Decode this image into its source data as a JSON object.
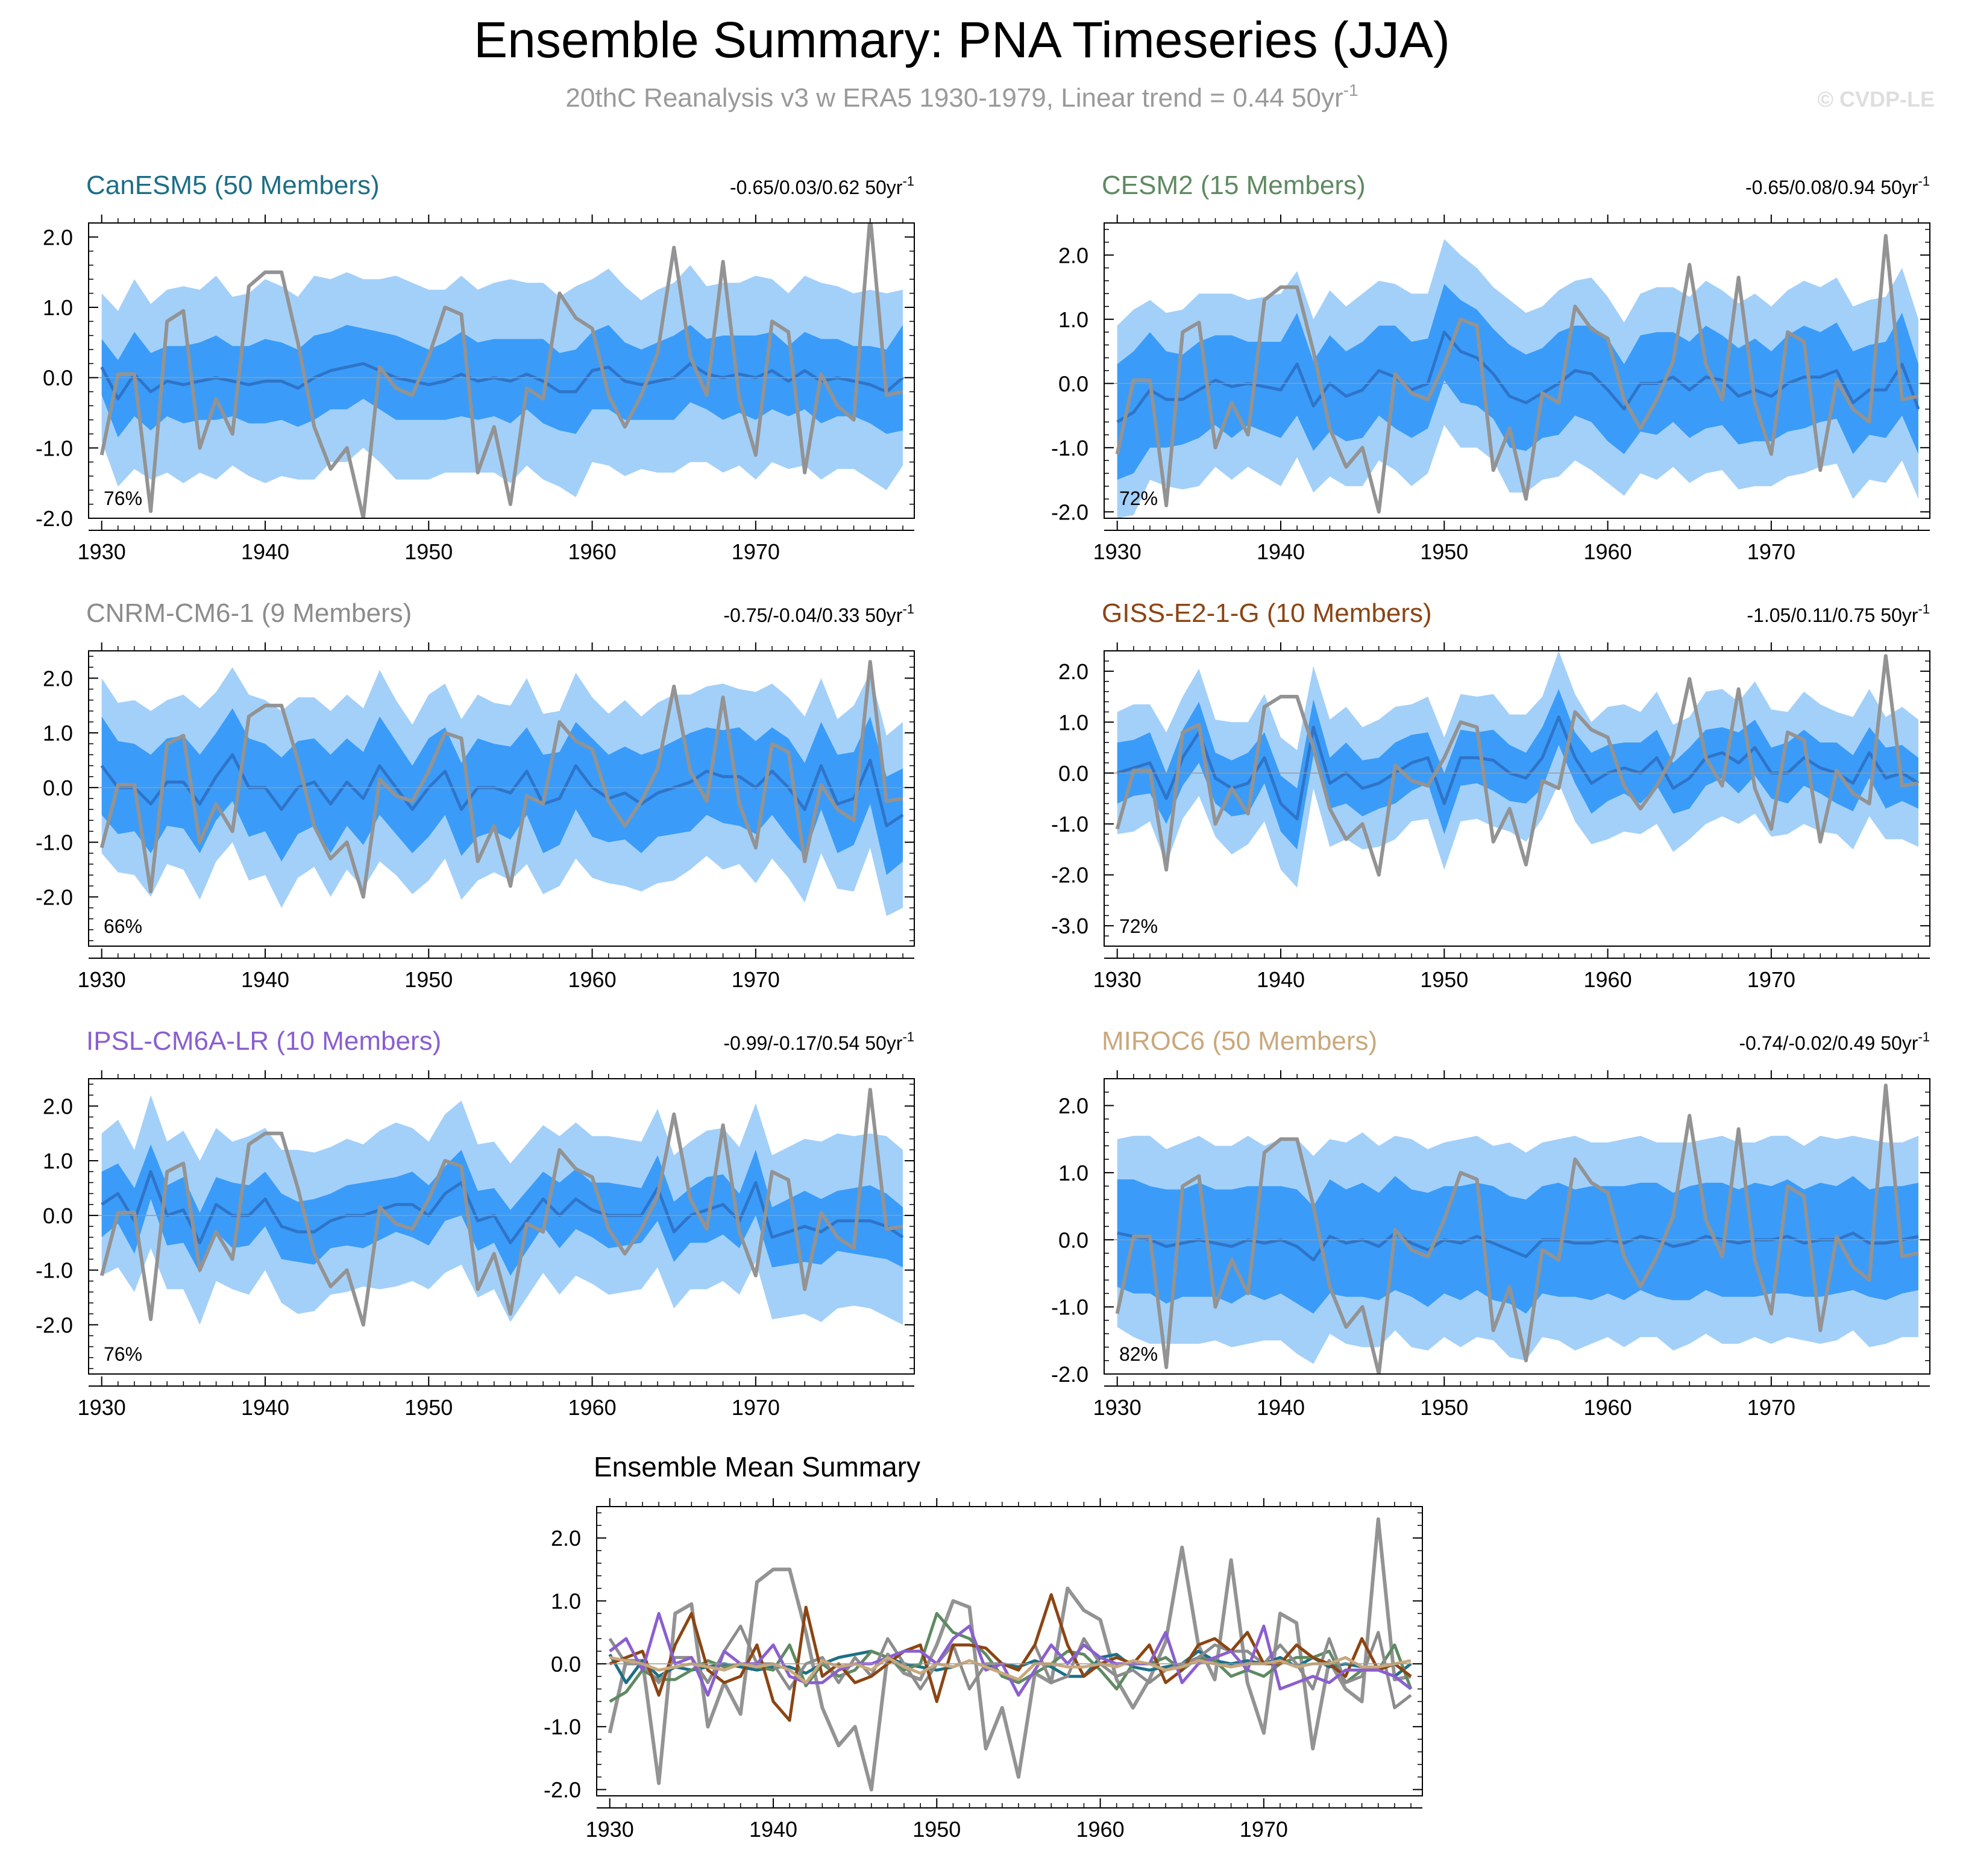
{
  "figure": {
    "title": "Ensemble Summary: PNA Timeseries (JJA)",
    "subtitle_main": "20thC Reanalysis v3 w ERA5 1930-1979, Linear trend = 0.44 50yr",
    "subtitle_exp": "-1",
    "watermark": "© CVDP-LE",
    "colors": {
      "outer_band": "#a3d0f9",
      "inner_band": "#3a9cf8",
      "ens_mean": "#2e74c9",
      "obs": "#939393"
    }
  },
  "chart_data": [
    {
      "type": "line",
      "model": "CanESM5",
      "title": "CanESM5 (50 Members)",
      "color": "#1d6f86",
      "trend_text": "-0.65/0.03/0.62 50yr",
      "trend_exp": "-1",
      "percent": "76%",
      "xlim": [
        1930,
        1979
      ],
      "ylim": [
        -2.0,
        2.2
      ],
      "xticks": [
        "1930",
        "1940",
        "1950",
        "1960",
        "1970"
      ],
      "yticks": [
        "2.0",
        "1.0",
        "0.0",
        "-1.0",
        "-2.0"
      ],
      "ens_mean": [
        0.15,
        -0.3,
        0.05,
        -0.2,
        -0.05,
        -0.1,
        -0.05,
        0.0,
        -0.05,
        -0.1,
        -0.05,
        -0.05,
        -0.15,
        0.0,
        0.1,
        0.15,
        0.2,
        0.1,
        0.0,
        -0.05,
        -0.1,
        -0.05,
        0.05,
        -0.05,
        0.0,
        -0.05,
        0.05,
        -0.05,
        -0.2,
        -0.2,
        0.1,
        0.15,
        -0.05,
        -0.1,
        -0.05,
        0.0,
        0.2,
        0.05,
        0.0,
        0.05,
        0.0,
        0.1,
        -0.05,
        0.1,
        -0.05,
        0.0,
        -0.05,
        -0.1,
        -0.2,
        0.0
      ],
      "band_half": [
        0.4,
        0.55,
        0.6,
        0.55,
        0.5,
        0.55,
        0.55,
        0.6,
        0.5,
        0.55,
        0.6,
        0.55,
        0.55,
        0.6,
        0.55,
        0.6,
        0.5,
        0.55,
        0.6,
        0.55,
        0.5,
        0.55,
        0.6,
        0.55,
        0.55,
        0.6,
        0.5,
        0.6,
        0.55,
        0.6,
        0.55,
        0.6,
        0.55,
        0.5,
        0.55,
        0.6,
        0.55,
        0.5,
        0.6,
        0.55,
        0.6,
        0.55,
        0.5,
        0.55,
        0.6,
        0.55,
        0.5,
        0.55,
        0.6,
        0.75
      ],
      "outer_half": [
        1.05,
        1.25,
        1.35,
        1.25,
        1.3,
        1.4,
        1.3,
        1.45,
        1.2,
        1.3,
        1.45,
        1.35,
        1.3,
        1.45,
        1.3,
        1.35,
        1.2,
        1.3,
        1.45,
        1.4,
        1.35,
        1.3,
        1.4,
        1.3,
        1.35,
        1.45,
        1.3,
        1.4,
        1.35,
        1.5,
        1.3,
        1.4,
        1.35,
        1.2,
        1.3,
        1.35,
        1.4,
        1.25,
        1.35,
        1.3,
        1.45,
        1.3,
        1.25,
        1.35,
        1.4,
        1.3,
        1.25,
        1.35,
        1.4,
        1.25
      ]
    },
    {
      "type": "line",
      "model": "CESM2",
      "title": "CESM2 (15 Members)",
      "color": "#5f8a62",
      "trend_text": "-0.65/0.08/0.94 50yr",
      "trend_exp": "-1",
      "percent": "72%",
      "xlim": [
        1930,
        1979
      ],
      "ylim": [
        -2.1,
        2.5
      ],
      "xticks": [
        "1930",
        "1940",
        "1950",
        "1960",
        "1970"
      ],
      "yticks": [
        "2.0",
        "1.0",
        "0.0",
        "-1.0",
        "-2.0"
      ],
      "ens_mean": [
        -0.6,
        -0.45,
        -0.1,
        -0.25,
        -0.25,
        -0.1,
        0.05,
        -0.05,
        0.0,
        -0.05,
        -0.1,
        0.3,
        -0.35,
        0.0,
        -0.2,
        -0.1,
        0.2,
        0.1,
        -0.1,
        0.0,
        0.8,
        0.5,
        0.4,
        0.15,
        -0.2,
        -0.3,
        -0.15,
        0.0,
        0.2,
        0.15,
        -0.1,
        -0.4,
        0.0,
        0.0,
        0.1,
        -0.1,
        0.1,
        0.05,
        -0.2,
        -0.1,
        -0.2,
        0.0,
        0.1,
        0.1,
        0.2,
        -0.3,
        -0.1,
        -0.1,
        0.3,
        -0.4
      ],
      "band_half": [
        0.9,
        0.95,
        0.9,
        0.75,
        0.7,
        0.75,
        0.7,
        0.8,
        0.65,
        0.7,
        0.75,
        0.8,
        0.7,
        0.75,
        0.7,
        0.75,
        0.7,
        0.8,
        0.75,
        0.7,
        0.75,
        0.8,
        0.75,
        0.7,
        0.8,
        0.75,
        0.7,
        0.8,
        0.7,
        0.75,
        0.8,
        0.7,
        0.75,
        0.8,
        0.7,
        0.75,
        0.8,
        0.7,
        0.75,
        0.8,
        0.7,
        0.75,
        0.8,
        0.7,
        0.75,
        0.8,
        0.7,
        0.75,
        0.8,
        0.7
      ],
      "outer_half": [
        1.5,
        1.6,
        1.4,
        1.35,
        1.4,
        1.5,
        1.35,
        1.45,
        1.3,
        1.4,
        1.5,
        1.45,
        1.35,
        1.45,
        1.4,
        1.5,
        1.4,
        1.45,
        1.5,
        1.4,
        1.45,
        1.5,
        1.4,
        1.35,
        1.5,
        1.4,
        1.35,
        1.45,
        1.4,
        1.5,
        1.45,
        1.35,
        1.4,
        1.5,
        1.4,
        1.45,
        1.5,
        1.4,
        1.45,
        1.5,
        1.4,
        1.45,
        1.5,
        1.4,
        1.45,
        1.5,
        1.4,
        1.45,
        1.5,
        1.4
      ]
    },
    {
      "type": "line",
      "model": "CNRM-CM6-1",
      "title": "CNRM-CM6-1 (9 Members)",
      "color": "#8c8c8c",
      "trend_text": "-0.75/-0.04/0.33 50yr",
      "trend_exp": "-1",
      "percent": "66%",
      "xlim": [
        1930,
        1979
      ],
      "ylim": [
        -2.9,
        2.5
      ],
      "xticks": [
        "1930",
        "1940",
        "1950",
        "1960",
        "1970"
      ],
      "yticks": [
        "2.0",
        "1.0",
        "0.0",
        "-1.0",
        "-2.0"
      ],
      "ens_mean": [
        0.4,
        0.0,
        0.0,
        -0.3,
        0.1,
        0.1,
        -0.3,
        0.2,
        0.6,
        0.0,
        0.0,
        -0.4,
        0.0,
        0.1,
        -0.3,
        0.1,
        -0.2,
        0.4,
        0.0,
        -0.4,
        0.0,
        0.3,
        -0.4,
        0.0,
        0.0,
        -0.1,
        0.3,
        -0.3,
        -0.2,
        0.4,
        0.0,
        -0.2,
        -0.1,
        -0.3,
        -0.1,
        0.0,
        0.1,
        0.3,
        0.2,
        0.2,
        0.0,
        0.3,
        0.0,
        -0.4,
        0.4,
        -0.3,
        -0.2,
        0.5,
        -0.7,
        -0.5
      ],
      "band_half": [
        0.9,
        0.85,
        0.8,
        0.9,
        0.8,
        0.85,
        0.9,
        0.8,
        0.85,
        0.9,
        0.8,
        0.95,
        0.85,
        0.8,
        0.9,
        0.8,
        0.85,
        0.9,
        0.85,
        0.8,
        0.9,
        0.8,
        0.85,
        0.9,
        0.8,
        0.85,
        0.8,
        0.9,
        0.85,
        0.8,
        0.9,
        0.8,
        0.85,
        0.9,
        0.8,
        0.85,
        0.9,
        0.8,
        0.85,
        0.9,
        0.85,
        0.8,
        0.9,
        0.85,
        0.8,
        0.9,
        0.85,
        0.8,
        0.9,
        0.85
      ],
      "outer_half": [
        1.6,
        1.55,
        1.6,
        1.7,
        1.5,
        1.6,
        1.75,
        1.55,
        1.6,
        1.7,
        1.6,
        1.8,
        1.65,
        1.55,
        1.7,
        1.6,
        1.65,
        1.75,
        1.6,
        1.55,
        1.7,
        1.6,
        1.65,
        1.7,
        1.55,
        1.6,
        1.7,
        1.65,
        1.6,
        1.7,
        1.65,
        1.55,
        1.7,
        1.6,
        1.65,
        1.7,
        1.6,
        1.55,
        1.7,
        1.6,
        1.75,
        1.6,
        1.65,
        1.7,
        1.6,
        1.55,
        1.7,
        1.6,
        1.65,
        1.7
      ]
    },
    {
      "type": "line",
      "model": "GISS-E2-1-G",
      "title": "GISS-E2-1-G (10 Members)",
      "color": "#8b4513",
      "trend_text": "-1.05/0.11/0.75 50yr",
      "trend_exp": "-1",
      "percent": "72%",
      "xlim": [
        1930,
        1979
      ],
      "ylim": [
        -3.4,
        2.4
      ],
      "xticks": [
        "1930",
        "1940",
        "1950",
        "1960",
        "1970"
      ],
      "yticks": [
        "2.0",
        "1.0",
        "0.0",
        "-1.0",
        "-2.0",
        "-3.0"
      ],
      "ens_mean": [
        0.0,
        0.1,
        0.2,
        -0.5,
        0.3,
        0.8,
        -0.1,
        -0.3,
        -0.2,
        0.3,
        -0.6,
        -0.9,
        0.9,
        -0.2,
        0.0,
        -0.3,
        -0.2,
        0.0,
        0.2,
        0.3,
        -0.6,
        0.3,
        0.3,
        0.25,
        0.0,
        -0.1,
        0.3,
        1.1,
        0.3,
        -0.2,
        0.0,
        0.1,
        0.0,
        0.3,
        -0.3,
        -0.1,
        0.3,
        0.4,
        0.2,
        0.5,
        0.0,
        0.0,
        0.3,
        0.1,
        0.0,
        -0.2,
        0.4,
        -0.1,
        0.0,
        -0.2
      ],
      "band_half": [
        0.6,
        0.55,
        0.6,
        0.5,
        0.55,
        0.6,
        0.5,
        0.55,
        0.6,
        0.5,
        0.55,
        0.6,
        0.55,
        0.5,
        0.6,
        0.55,
        0.5,
        0.6,
        0.55,
        0.5,
        0.6,
        0.55,
        0.5,
        0.6,
        0.55,
        0.5,
        0.6,
        0.55,
        0.5,
        0.6,
        0.55,
        0.5,
        0.6,
        0.55,
        0.5,
        0.6,
        0.55,
        0.5,
        0.6,
        0.55,
        0.5,
        0.6,
        0.55,
        0.5,
        0.6,
        0.55,
        0.5,
        0.6,
        0.55,
        0.5
      ],
      "outer_half": [
        1.2,
        1.25,
        1.15,
        1.3,
        1.2,
        1.25,
        1.15,
        1.3,
        1.2,
        1.25,
        1.3,
        1.35,
        1.2,
        1.25,
        1.3,
        1.2,
        1.25,
        1.3,
        1.15,
        1.2,
        1.3,
        1.25,
        1.2,
        1.3,
        1.15,
        1.25,
        1.2,
        1.3,
        1.25,
        1.2,
        1.3,
        1.25,
        1.2,
        1.3,
        1.25,
        1.2,
        1.3,
        1.25,
        1.2,
        1.3,
        1.25,
        1.2,
        1.3,
        1.25,
        1.2,
        1.3,
        1.25,
        1.2,
        1.3,
        1.25
      ]
    },
    {
      "type": "line",
      "model": "IPSL-CM6A-LR",
      "title": "IPSL-CM6A-LR (10 Members)",
      "color": "#8a5fcf",
      "trend_text": "-0.99/-0.17/0.54 50yr",
      "trend_exp": "-1",
      "percent": "76%",
      "xlim": [
        1930,
        1979
      ],
      "ylim": [
        -2.9,
        2.5
      ],
      "xticks": [
        "1930",
        "1940",
        "1950",
        "1960",
        "1970"
      ],
      "yticks": [
        "2.0",
        "1.0",
        "0.0",
        "-1.0",
        "-2.0"
      ],
      "ens_mean": [
        0.2,
        0.4,
        -0.1,
        0.8,
        0.0,
        0.1,
        -0.5,
        0.2,
        0.0,
        0.0,
        0.3,
        -0.2,
        -0.3,
        -0.3,
        -0.1,
        0.0,
        0.0,
        0.1,
        0.2,
        0.2,
        0.0,
        0.4,
        0.6,
        -0.1,
        0.0,
        -0.5,
        -0.1,
        0.3,
        0.0,
        0.3,
        0.1,
        0.0,
        0.0,
        0.0,
        0.5,
        -0.3,
        0.0,
        0.1,
        0.2,
        -0.1,
        0.6,
        -0.4,
        -0.3,
        -0.2,
        -0.3,
        -0.1,
        -0.1,
        -0.1,
        -0.2,
        -0.4
      ],
      "band_half": [
        0.6,
        0.55,
        0.6,
        0.5,
        0.55,
        0.6,
        0.55,
        0.5,
        0.6,
        0.55,
        0.5,
        0.6,
        0.55,
        0.6,
        0.5,
        0.55,
        0.6,
        0.55,
        0.5,
        0.6,
        0.55,
        0.5,
        0.6,
        0.55,
        0.5,
        0.6,
        0.55,
        0.5,
        0.6,
        0.55,
        0.5,
        0.6,
        0.55,
        0.5,
        0.6,
        0.55,
        0.5,
        0.6,
        0.55,
        0.5,
        0.6,
        0.55,
        0.6,
        0.65,
        0.6,
        0.55,
        0.6,
        0.65,
        0.6,
        0.55
      ],
      "outer_half": [
        1.3,
        1.35,
        1.3,
        1.4,
        1.35,
        1.45,
        1.5,
        1.4,
        1.35,
        1.45,
        1.3,
        1.4,
        1.5,
        1.45,
        1.35,
        1.4,
        1.3,
        1.45,
        1.5,
        1.4,
        1.35,
        1.45,
        1.5,
        1.4,
        1.35,
        1.45,
        1.4,
        1.35,
        1.45,
        1.4,
        1.35,
        1.45,
        1.4,
        1.35,
        1.45,
        1.4,
        1.35,
        1.45,
        1.4,
        1.35,
        1.45,
        1.5,
        1.55,
        1.6,
        1.65,
        1.6,
        1.55,
        1.6,
        1.65,
        1.6
      ]
    },
    {
      "type": "line",
      "model": "MIROC6",
      "title": "MIROC6 (50 Members)",
      "color": "#c9a87c",
      "trend_text": "-0.74/-0.02/0.49 50yr",
      "trend_exp": "-1",
      "percent": "82%",
      "xlim": [
        1930,
        1979
      ],
      "ylim": [
        -2.0,
        2.4
      ],
      "xticks": [
        "1930",
        "1940",
        "1950",
        "1960",
        "1970"
      ],
      "yticks": [
        "2.0",
        "1.0",
        "0.0",
        "-1.0",
        "-2.0"
      ],
      "ens_mean": [
        0.1,
        0.05,
        0.0,
        -0.1,
        -0.05,
        0.0,
        -0.05,
        -0.1,
        0.0,
        -0.05,
        0.0,
        -0.1,
        -0.3,
        0.05,
        -0.05,
        0.0,
        -0.1,
        0.1,
        -0.05,
        -0.15,
        0.0,
        -0.05,
        0.05,
        -0.05,
        -0.15,
        -0.25,
        0.0,
        0.0,
        -0.05,
        -0.05,
        0.0,
        -0.05,
        0.05,
        0.0,
        -0.1,
        -0.05,
        0.05,
        0.0,
        -0.05,
        0.0,
        0.0,
        0.05,
        -0.05,
        0.0,
        0.0,
        0.1,
        -0.05,
        -0.05,
        0.0,
        0.05
      ],
      "band_half": [
        0.8,
        0.85,
        0.8,
        0.85,
        0.8,
        0.85,
        0.8,
        0.85,
        0.8,
        0.85,
        0.8,
        0.85,
        0.8,
        0.85,
        0.8,
        0.85,
        0.8,
        0.85,
        0.8,
        0.85,
        0.8,
        0.85,
        0.8,
        0.85,
        0.8,
        0.85,
        0.8,
        0.85,
        0.8,
        0.85,
        0.8,
        0.85,
        0.8,
        0.85,
        0.8,
        0.85,
        0.8,
        0.85,
        0.8,
        0.85,
        0.8,
        0.85,
        0.8,
        0.85,
        0.8,
        0.85,
        0.8,
        0.85,
        0.8,
        0.8
      ],
      "outer_half": [
        1.4,
        1.5,
        1.55,
        1.45,
        1.5,
        1.55,
        1.45,
        1.5,
        1.55,
        1.45,
        1.5,
        1.6,
        1.55,
        1.45,
        1.5,
        1.6,
        1.5,
        1.45,
        1.55,
        1.5,
        1.45,
        1.55,
        1.5,
        1.45,
        1.6,
        1.55,
        1.45,
        1.5,
        1.6,
        1.5,
        1.45,
        1.55,
        1.5,
        1.45,
        1.55,
        1.5,
        1.45,
        1.55,
        1.5,
        1.45,
        1.55,
        1.5,
        1.45,
        1.55,
        1.5,
        1.45,
        1.55,
        1.5,
        1.45,
        1.5
      ]
    }
  ],
  "observations": {
    "name": "20thC Reanalysis v3 w ERA5",
    "color": "#939393",
    "values": [
      -1.1,
      0.05,
      0.05,
      -1.9,
      0.8,
      0.95,
      -1.0,
      -0.3,
      -0.8,
      1.3,
      1.5,
      1.5,
      0.5,
      -0.7,
      -1.3,
      -1.0,
      -2.0,
      0.15,
      -0.15,
      -0.25,
      0.3,
      1.0,
      0.9,
      -1.35,
      -0.7,
      -1.8,
      -0.15,
      -0.3,
      1.2,
      0.85,
      0.7,
      -0.25,
      -0.7,
      -0.25,
      0.35,
      1.85,
      0.3,
      -0.25,
      1.65,
      -0.3,
      -1.1,
      0.8,
      0.65,
      -1.35,
      0.05,
      -0.4,
      -0.6,
      2.3,
      -0.25,
      -0.2
    ]
  },
  "ensemble_mean_summary": {
    "type": "line",
    "title": "Ensemble Mean Summary",
    "xlim": [
      1930,
      1979
    ],
    "ylim": [
      -2.1,
      2.5
    ],
    "xticks": [
      "1930",
      "1940",
      "1950",
      "1960",
      "1970"
    ],
    "yticks": [
      "2.0",
      "1.0",
      "0.0",
      "-1.0",
      "-2.0"
    ]
  }
}
